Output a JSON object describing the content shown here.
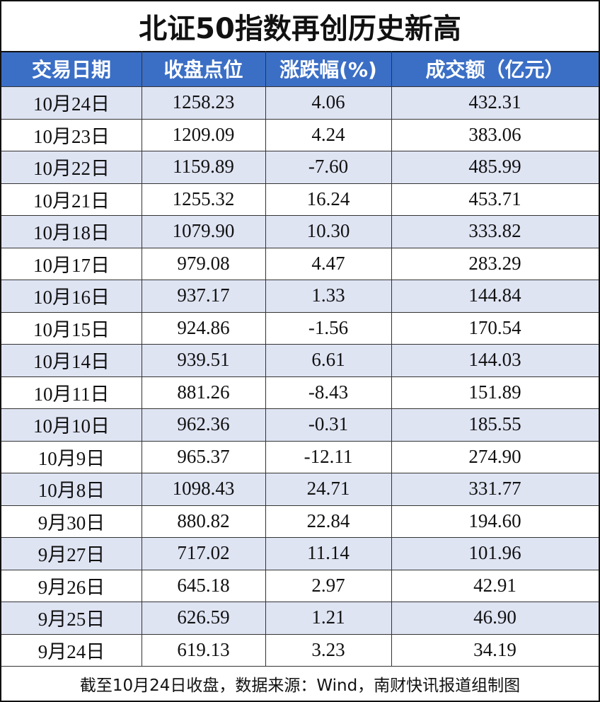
{
  "title": "北证50指数再创历史新高",
  "table": {
    "columns": [
      "交易日期",
      "收盘点位",
      "涨跌幅(%)",
      "成交额（亿元）"
    ],
    "rows": [
      [
        "10月24日",
        "1258.23",
        "4.06",
        "432.31"
      ],
      [
        "10月23日",
        "1209.09",
        "4.24",
        "383.06"
      ],
      [
        "10月22日",
        "1159.89",
        "-7.60",
        "485.99"
      ],
      [
        "10月21日",
        "1255.32",
        "16.24",
        "453.71"
      ],
      [
        "10月18日",
        "1079.90",
        "10.30",
        "333.82"
      ],
      [
        "10月17日",
        "979.08",
        "4.47",
        "283.29"
      ],
      [
        "10月16日",
        "937.17",
        "1.33",
        "144.84"
      ],
      [
        "10月15日",
        "924.86",
        "-1.56",
        "170.54"
      ],
      [
        "10月14日",
        "939.51",
        "6.61",
        "144.03"
      ],
      [
        "10月11日",
        "881.26",
        "-8.43",
        "151.89"
      ],
      [
        "10月10日",
        "962.36",
        "-0.31",
        "185.55"
      ],
      [
        "10月9日",
        "965.37",
        "-12.11",
        "274.90"
      ],
      [
        "10月8日",
        "1098.43",
        "24.71",
        "331.77"
      ],
      [
        "9月30日",
        "880.82",
        "22.84",
        "194.60"
      ],
      [
        "9月27日",
        "717.02",
        "11.14",
        "101.96"
      ],
      [
        "9月26日",
        "645.18",
        "2.97",
        "42.91"
      ],
      [
        "9月25日",
        "626.59",
        "1.21",
        "46.90"
      ],
      [
        "9月24日",
        "619.13",
        "3.23",
        "34.19"
      ]
    ]
  },
  "footer": "截至10月24日收盘，数据来源：Wind，南财快讯报道组制图"
}
